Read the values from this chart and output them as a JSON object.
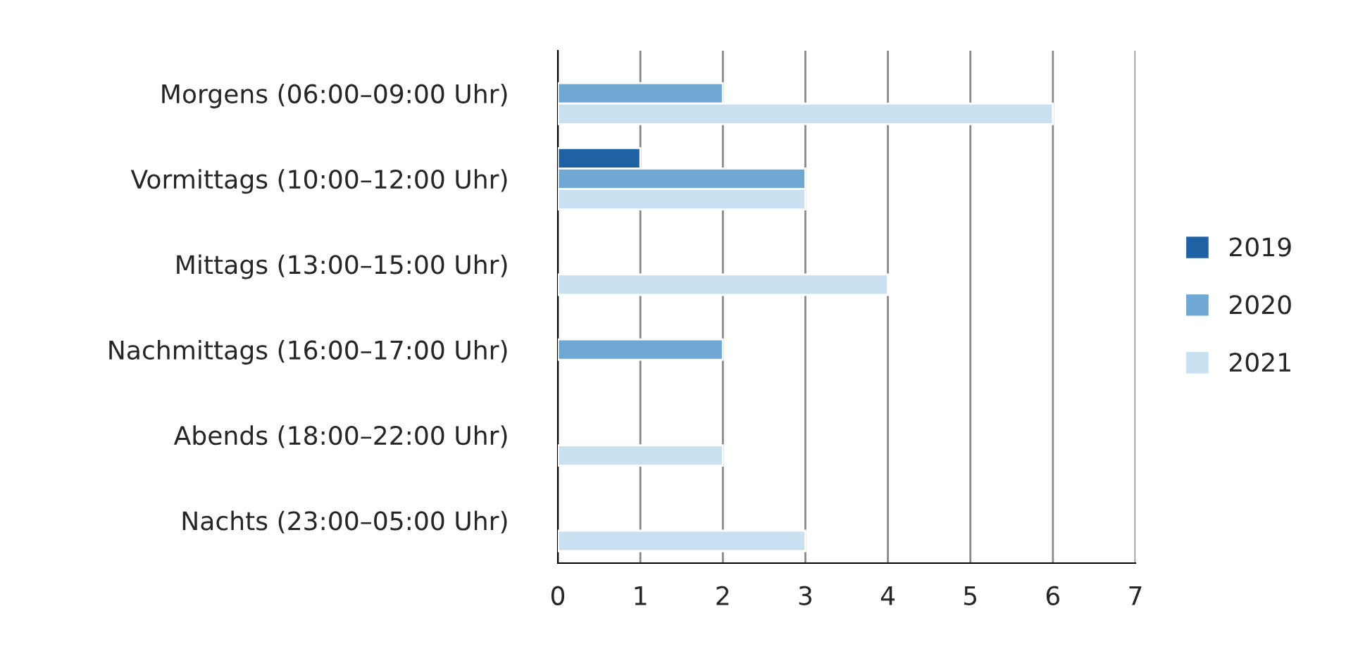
{
  "chart_data": {
    "type": "bar",
    "orientation": "horizontal",
    "categories": [
      "Morgens (06:00–09:00 Uhr)",
      "Vormittags (10:00–12:00 Uhr)",
      "Mittags (13:00–15:00 Uhr)",
      "Nachmittags (16:00–17:00 Uhr)",
      "Abends (18:00–22:00 Uhr)",
      "Nachts (23:00–05:00 Uhr)"
    ],
    "series": [
      {
        "name": "2019",
        "color": "#1f62a3",
        "values": [
          null,
          1,
          null,
          null,
          null,
          null
        ]
      },
      {
        "name": "2020",
        "color": "#6fa8d2",
        "values": [
          2,
          3,
          null,
          2,
          null,
          null
        ]
      },
      {
        "name": "2021",
        "color": "#c8e0f0",
        "values": [
          6,
          3,
          4,
          null,
          2,
          3
        ]
      }
    ],
    "xlim": [
      0,
      7
    ],
    "xticks": [
      0,
      1,
      2,
      3,
      4,
      5,
      6,
      7
    ],
    "grid": "x",
    "legend": "right"
  }
}
